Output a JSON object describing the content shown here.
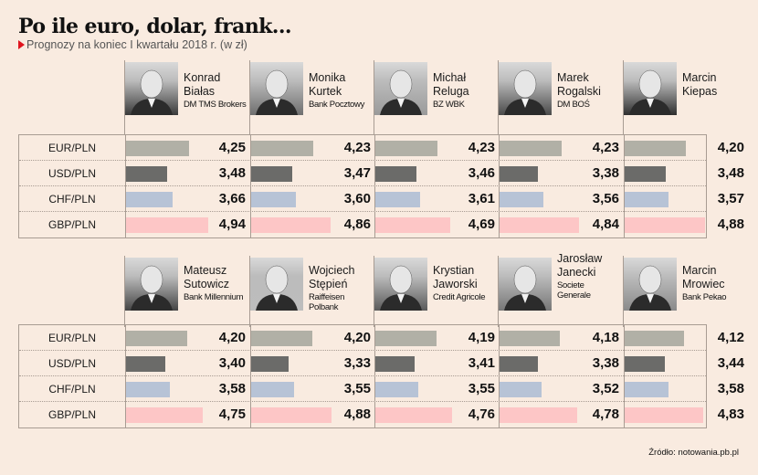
{
  "title": "Po ile euro, dolar, frank...",
  "subtitle": "Prognozy na koniec I kwartału 2018 r. (w zł)",
  "source": "Źródło: notowania.pb.pl",
  "colors": {
    "EUR/PLN": "#b1b0a6",
    "USD/PLN": "#6b6b69",
    "CHF/PLN": "#b7c3d6",
    "GBP/PLN": "#fdc6c6",
    "accent": "#e0141e",
    "background": "#f9ebe0"
  },
  "chart_data": {
    "type": "bar",
    "title": "Po ile euro, dolar, frank...",
    "subtitle": "Prognozy na koniec I kwartału 2018 r. (w zł)",
    "categories": [
      "EUR/PLN",
      "USD/PLN",
      "CHF/PLN",
      "GBP/PLN"
    ],
    "groups": [
      {
        "analysts": [
          {
            "first": "Konrad",
            "last": "Białas",
            "institution": "DM TMS Brokers",
            "values": [
              "4,25",
              "3,48",
              "3,66",
              "4,94"
            ]
          },
          {
            "first": "Monika",
            "last": "Kurtek",
            "institution": "Bank Pocztowy",
            "values": [
              "4,23",
              "3,47",
              "3,60",
              "4,86"
            ]
          },
          {
            "first": "Michał",
            "last": "Reluga",
            "institution": "BZ WBK",
            "values": [
              "4,23",
              "3,46",
              "3,61",
              "4,69"
            ]
          },
          {
            "first": "Marek",
            "last": "Rogalski",
            "institution": "DM BOŚ",
            "values": [
              "4,23",
              "3,38",
              "3,56",
              "4,84"
            ]
          },
          {
            "first": "Marcin",
            "last": "Kiepas",
            "institution": "",
            "values": [
              "4,20",
              "3,48",
              "3,57",
              "4,88"
            ]
          }
        ]
      },
      {
        "analysts": [
          {
            "first": "Mateusz",
            "last": "Sutowicz",
            "institution": "Bank Millennium",
            "values": [
              "4,20",
              "3,40",
              "3,58",
              "4,75"
            ]
          },
          {
            "first": "Wojciech",
            "last": "Stępień",
            "institution": "Raiffeisen Polbank",
            "values": [
              "4,20",
              "3,33",
              "3,55",
              "4,88"
            ]
          },
          {
            "first": "Krystian",
            "last": "Jaworski",
            "institution": "Credit Agricole",
            "values": [
              "4,19",
              "3,41",
              "3,55",
              "4,76"
            ]
          },
          {
            "first": "Jarosław",
            "last": "Janecki",
            "institution": "Societe Generale",
            "values": [
              "4,18",
              "3,38",
              "3,52",
              "4,78"
            ]
          },
          {
            "first": "Marcin",
            "last": "Mrowiec",
            "institution": "Bank Pekao",
            "values": [
              "4,12",
              "3,44",
              "3,58",
              "4,83"
            ]
          }
        ]
      }
    ],
    "value_baseline": 2.0,
    "xlabel": "",
    "ylabel": "",
    "legend": "none"
  }
}
